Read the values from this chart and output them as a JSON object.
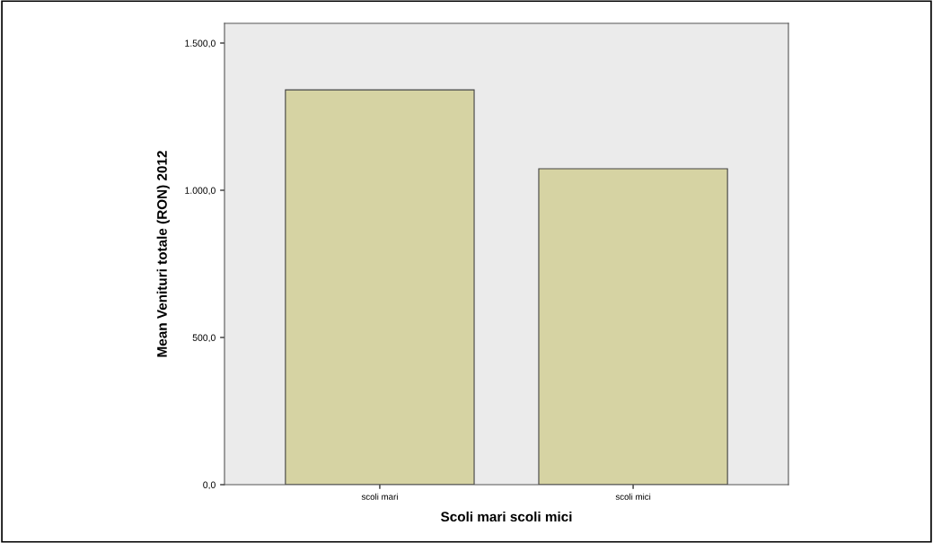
{
  "chart_data": {
    "type": "bar",
    "xlabel": "Scoli mari scoli mici",
    "ylabel": "Mean Venituri totale (RON) 2012",
    "categories": [
      "scoli mari",
      "scoli mici"
    ],
    "values": [
      1341,
      1073
    ],
    "color": "#d6d3a3",
    "ylim": [
      0,
      1567
    ],
    "yticks": [
      {
        "value": 0,
        "label": "0,0"
      },
      {
        "value": 500,
        "label": "500,0"
      },
      {
        "value": 1000,
        "label": "1.000,0"
      },
      {
        "value": 1500,
        "label": "1.500,0"
      }
    ],
    "grid": false,
    "legend": false
  }
}
